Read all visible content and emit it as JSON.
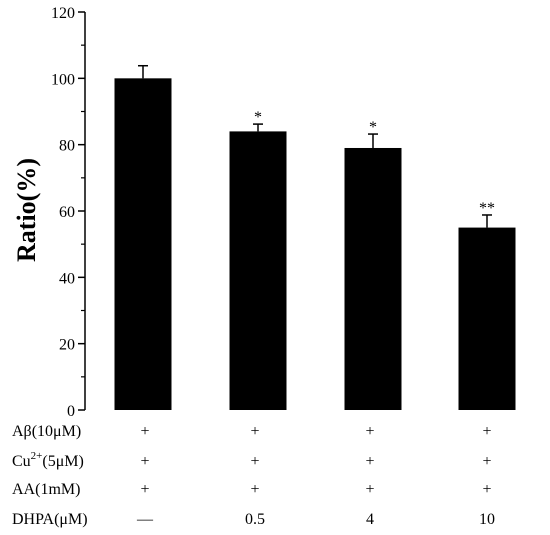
{
  "chart_data": {
    "type": "bar",
    "title": "",
    "ylabel": "Ratio(%)",
    "xlabel": "",
    "ylim": [
      0,
      120
    ],
    "yticks": [
      0,
      20,
      40,
      60,
      80,
      100,
      120
    ],
    "grid": false,
    "legend": "none",
    "bar_color": "#000000",
    "values": [
      100,
      84,
      79,
      55
    ],
    "errors": [
      3.8,
      2.2,
      4.2,
      3.8
    ],
    "significance": [
      "",
      "*",
      "*",
      "**"
    ],
    "conditions": [
      {
        "label": "Aβ(10μM)",
        "values": [
          "+",
          "+",
          "+",
          "+"
        ]
      },
      {
        "label": "Cu2+(5μM)",
        "label_base": "Cu",
        "label_sup": "2+",
        "label_rest": "(5μM)",
        "values": [
          "+",
          "+",
          "+",
          "+"
        ]
      },
      {
        "label": "AA(1mM)",
        "values": [
          "+",
          "+",
          "+",
          "+"
        ]
      },
      {
        "label": "DHPA(μM)",
        "values": [
          "—",
          "0.5",
          "4",
          "10"
        ]
      }
    ]
  }
}
